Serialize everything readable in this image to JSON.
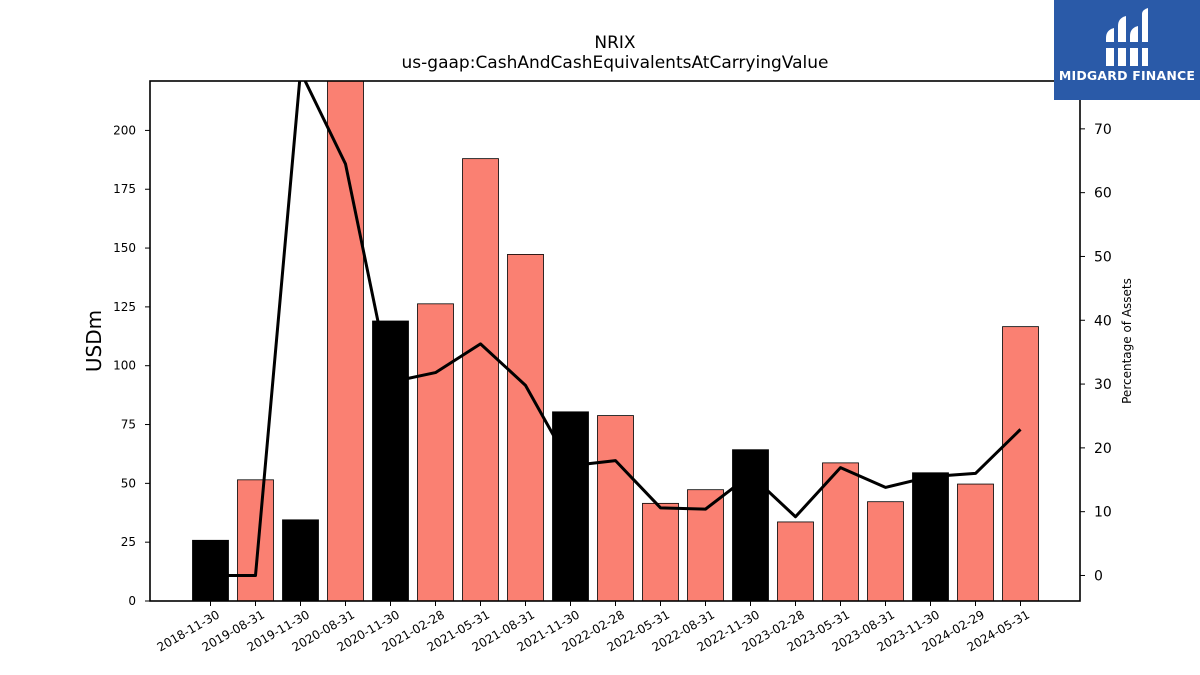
{
  "chart_data": {
    "type": "bar+line",
    "title": "NRIX",
    "subtitle": "us-gaap:CashAndCashEquivalentsAtCarryingValue",
    "ylabel": "USDm",
    "y2label": "Percentage of Assets",
    "ylim": [
      0,
      221
    ],
    "y2lim": [
      -4,
      77.5
    ],
    "yticks": [
      0,
      25,
      50,
      75,
      100,
      125,
      150,
      175,
      200
    ],
    "y2ticks": [
      0,
      10,
      20,
      30,
      40,
      50,
      60,
      70
    ],
    "categories": [
      "2018-11-30",
      "2019-08-31",
      "2019-11-30",
      "2020-08-31",
      "2020-11-30",
      "2021-02-28",
      "2021-05-31",
      "2021-08-31",
      "2021-11-30",
      "2022-02-28",
      "2022-05-31",
      "2022-08-31",
      "2022-11-30",
      "2023-02-28",
      "2023-05-31",
      "2023-08-31",
      "2023-11-30",
      "2024-02-29",
      "2024-05-31"
    ],
    "bars": {
      "name": "USDm",
      "values": [
        25.8,
        51.5,
        34.5,
        221,
        119,
        126.3,
        188,
        147.3,
        80.4,
        78.8,
        41.5,
        47.3,
        64.3,
        33.6,
        58.7,
        42.2,
        54.5,
        49.7,
        116.6
      ],
      "colors": [
        "#000000",
        "#fa8072",
        "#000000",
        "#fa8072",
        "#000000",
        "#fa8072",
        "#fa8072",
        "#fa8072",
        "#000000",
        "#fa8072",
        "#fa8072",
        "#fa8072",
        "#000000",
        "#fa8072",
        "#fa8072",
        "#fa8072",
        "#000000",
        "#fa8072",
        "#fa8072"
      ]
    },
    "line": {
      "name": "Percentage of Assets",
      "values": [
        0,
        0,
        79,
        64.5,
        30.3,
        31.8,
        36.3,
        29.8,
        17.2,
        18,
        10.6,
        10.4,
        15.8,
        9.2,
        16.9,
        13.8,
        15.5,
        16,
        22.9
      ],
      "color": "#000000"
    },
    "grid": false
  },
  "logo": {
    "text": "MIDGARD FINANCE"
  }
}
